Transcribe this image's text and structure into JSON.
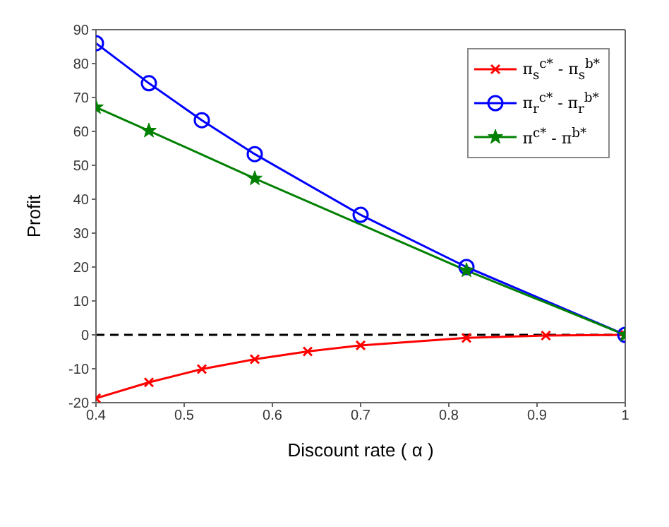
{
  "chart_data": {
    "type": "line",
    "xlabel": "Discount rate ( α )",
    "ylabel": "Profit",
    "xlim": [
      0.4,
      1
    ],
    "xticks": [
      0.4,
      0.5,
      0.6,
      0.7,
      0.8,
      0.9,
      1
    ],
    "ylim": [
      -20,
      90
    ],
    "yticks": [
      -20,
      -10,
      0,
      10,
      20,
      30,
      40,
      50,
      60,
      70,
      80,
      90
    ],
    "grid": false,
    "legend": "top right",
    "line_style": "solid",
    "ref_lines": [
      {
        "axis": "y",
        "value": 0,
        "color": "#000000",
        "line_style": "dashed"
      }
    ],
    "series": [
      {
        "name": "π$_{s}$$^{c*}$ - π$_{s}$$^{b*}$",
        "color": "#ff0000",
        "marker": "cross",
        "x": [
          0.4,
          0.46,
          0.52,
          0.58,
          0.64,
          0.7,
          0.82,
          0.91,
          1
        ],
        "values": [
          -18.7,
          -14,
          -10.1,
          -7.2,
          -4.9,
          -3.1,
          -0.9,
          -0.2,
          0
        ]
      },
      {
        "name": "π$_{r}$$^{c*}$ - π$_{r}$$^{b*}$",
        "color": "#0000ff",
        "marker": "circle",
        "x": [
          0.4,
          0.46,
          0.52,
          0.58,
          0.7,
          0.82,
          1
        ],
        "values": [
          86,
          74.2,
          63.3,
          53.3,
          35.4,
          20,
          0
        ]
      },
      {
        "name": "π$^{c*}$ - π$^{b*}$",
        "color": "#008000",
        "marker": "star",
        "x": [
          0.4,
          0.46,
          0.58,
          0.82,
          1
        ],
        "values": [
          67.1,
          60.2,
          46.1,
          19,
          0
        ]
      }
    ]
  }
}
